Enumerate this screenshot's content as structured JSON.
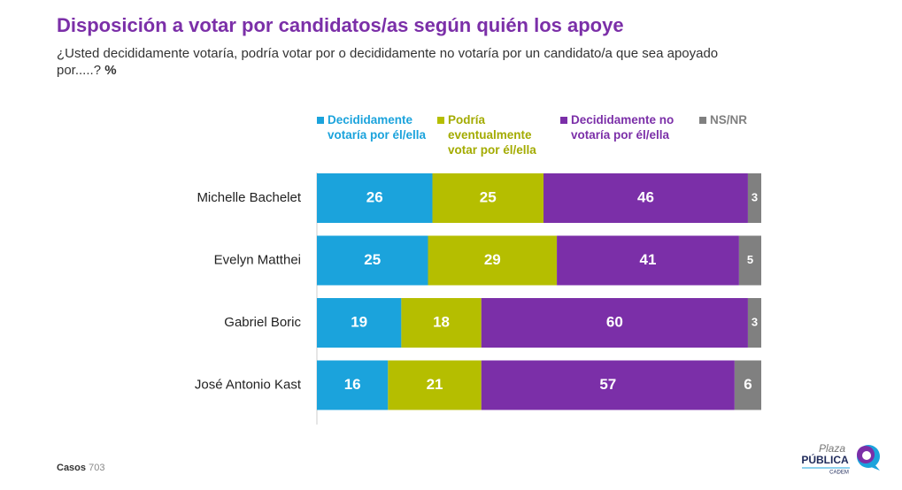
{
  "chart_data": {
    "type": "stacked-bar-horizontal",
    "title": "Disposición a votar por candidatos/as según quién los apoye",
    "subtitle": "¿Usted decididamente votaría, podría votar por o decididamente no votaría por un candidato/a que sea apoyado por.....?",
    "subtitle_unit": "%",
    "categories": [
      "Michelle Bachelet",
      "Evelyn Matthei",
      "Gabriel Boric",
      "José Antonio Kast"
    ],
    "series": [
      {
        "name": "Decididamente votaría por él/ella",
        "color": "#1ba3dc",
        "values": [
          26,
          25,
          19,
          16
        ]
      },
      {
        "name": "Podría eventualmente votar por él/ella",
        "color": "#b5be00",
        "values": [
          25,
          29,
          18,
          21
        ]
      },
      {
        "name": "Decididamente no votaría por él/ella",
        "color": "#7b2fa8",
        "values": [
          46,
          41,
          60,
          57
        ]
      },
      {
        "name": "NS/NR",
        "color": "#808080",
        "values": [
          3,
          5,
          3,
          6
        ]
      }
    ],
    "xlim": [
      0,
      100
    ],
    "legend": "top"
  },
  "footer": {
    "cases_label": "Casos",
    "cases": 703
  },
  "logo": {
    "top": "Plaza",
    "middle": "PÚBLICA",
    "bottom": "CADEM"
  }
}
